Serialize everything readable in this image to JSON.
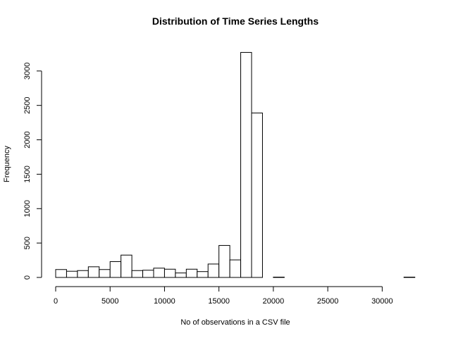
{
  "chart_data": {
    "type": "bar",
    "title": "Distribution of Time Series Lengths",
    "xlabel": "No of observations in a CSV file",
    "ylabel": "Frequency",
    "bin_width": 1000,
    "xlim": [
      0,
      33000
    ],
    "ylim": [
      0,
      3300
    ],
    "x_ticks": [
      0,
      5000,
      10000,
      15000,
      20000,
      25000,
      30000
    ],
    "y_ticks": [
      0,
      500,
      1000,
      1500,
      2000,
      2500,
      3000
    ],
    "bins": [
      {
        "start": 0,
        "end": 1000,
        "count": 115
      },
      {
        "start": 1000,
        "end": 2000,
        "count": 90
      },
      {
        "start": 2000,
        "end": 3000,
        "count": 100
      },
      {
        "start": 3000,
        "end": 4000,
        "count": 155
      },
      {
        "start": 4000,
        "end": 5000,
        "count": 115
      },
      {
        "start": 5000,
        "end": 6000,
        "count": 230
      },
      {
        "start": 6000,
        "end": 7000,
        "count": 325
      },
      {
        "start": 7000,
        "end": 8000,
        "count": 100
      },
      {
        "start": 8000,
        "end": 9000,
        "count": 105
      },
      {
        "start": 9000,
        "end": 10000,
        "count": 135
      },
      {
        "start": 10000,
        "end": 11000,
        "count": 120
      },
      {
        "start": 11000,
        "end": 12000,
        "count": 65
      },
      {
        "start": 12000,
        "end": 13000,
        "count": 120
      },
      {
        "start": 13000,
        "end": 14000,
        "count": 85
      },
      {
        "start": 14000,
        "end": 15000,
        "count": 195
      },
      {
        "start": 15000,
        "end": 16000,
        "count": 465
      },
      {
        "start": 16000,
        "end": 17000,
        "count": 255
      },
      {
        "start": 17000,
        "end": 18000,
        "count": 3270
      },
      {
        "start": 18000,
        "end": 19000,
        "count": 2390
      },
      {
        "start": 19000,
        "end": 20000,
        "count": 0
      },
      {
        "start": 20000,
        "end": 21000,
        "count": 5
      },
      {
        "start": 21000,
        "end": 22000,
        "count": 0
      },
      {
        "start": 22000,
        "end": 23000,
        "count": 0
      },
      {
        "start": 23000,
        "end": 24000,
        "count": 0
      },
      {
        "start": 24000,
        "end": 25000,
        "count": 0
      },
      {
        "start": 25000,
        "end": 26000,
        "count": 0
      },
      {
        "start": 26000,
        "end": 27000,
        "count": 0
      },
      {
        "start": 27000,
        "end": 28000,
        "count": 0
      },
      {
        "start": 28000,
        "end": 29000,
        "count": 0
      },
      {
        "start": 29000,
        "end": 30000,
        "count": 0
      },
      {
        "start": 30000,
        "end": 31000,
        "count": 0
      },
      {
        "start": 31000,
        "end": 32000,
        "count": 0
      },
      {
        "start": 32000,
        "end": 33000,
        "count": 5
      }
    ],
    "bar_fill": "#ffffff",
    "bar_stroke": "#000000",
    "grid": false
  }
}
